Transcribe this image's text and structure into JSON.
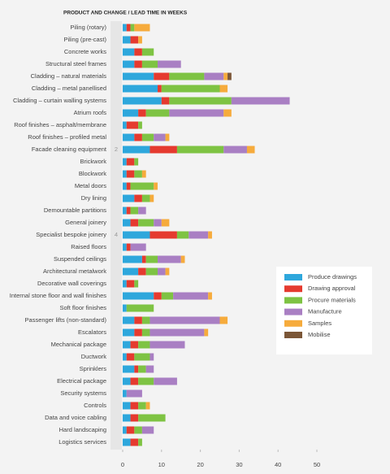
{
  "chart_data": {
    "type": "stacked-bar-horizontal",
    "title": "PRODUCT AND CHANGE  /  LEAD TIME IN WEEKS",
    "categories": [
      "Piling (rotary)",
      "Piling (pre-cast)",
      "Concrete works",
      "Structural steel frames",
      "Cladding – natural materials",
      "Cladding – metal panellised",
      "Cladding – curtain walling systems",
      "Atrium roofs",
      "Roof finishes – asphalt/membrane",
      "Roof finishes – profiled metal",
      "Facade cleaning equipment",
      "Brickwork",
      "Blockwork",
      "Metal doors",
      "Dry lining",
      "Demountable partitions",
      "General joinery",
      "Specialist bespoke joinery",
      "Raised floors",
      "Suspended ceilings",
      "Architectural metalwork",
      "Decorative wall coverings",
      "Internal stone floor and wall finishes",
      "Soft floor finishes",
      "Passenger lifts (non-standard)",
      "Escalators",
      "Mechanical package",
      "Ductwork",
      "Sprinklers",
      "Electrical package",
      "Security systems",
      "Controls",
      "Data and voice cabling",
      "Hard landscaping",
      "Logistics services"
    ],
    "series": [
      {
        "name": "Produce drawings",
        "color": "#2ea7dc",
        "values": [
          1,
          2,
          3,
          3,
          8,
          9,
          10,
          4,
          1,
          3,
          7,
          1,
          1,
          1,
          3,
          1,
          2,
          7,
          1,
          5,
          4,
          1,
          8,
          1,
          3,
          3,
          2,
          1,
          3,
          2,
          1,
          2,
          2,
          1,
          2
        ]
      },
      {
        "name": "Drawing approval",
        "color": "#e53a2f",
        "values": [
          1,
          2,
          2,
          2,
          4,
          1,
          2,
          2,
          3,
          2,
          7,
          2,
          2,
          1,
          2,
          1,
          2,
          7,
          1,
          1,
          2,
          2,
          2,
          0,
          2,
          2,
          2,
          2,
          1,
          2,
          0,
          2,
          2,
          2,
          2
        ]
      },
      {
        "name": "Procure materials",
        "color": "#7ec343",
        "values": [
          1,
          0,
          3,
          4,
          9,
          15,
          16,
          6,
          1,
          3,
          12,
          1,
          2,
          6,
          2,
          2,
          4,
          3,
          0,
          3,
          3,
          1,
          3,
          7,
          2,
          2,
          3,
          4,
          2,
          4,
          0,
          2,
          7,
          2,
          1
        ]
      },
      {
        "name": "Manufacture",
        "color": "#a97fc3",
        "values": [
          0,
          0,
          0,
          6,
          5,
          0,
          15,
          14,
          0,
          3,
          6,
          0,
          0,
          0,
          0,
          2,
          2,
          5,
          4,
          6,
          2,
          0,
          9,
          0,
          18,
          14,
          9,
          1,
          2,
          6,
          4,
          0,
          0,
          3,
          0
        ]
      },
      {
        "name": "Samples",
        "color": "#f6ab3c",
        "values": [
          4,
          1,
          0,
          0,
          1,
          2,
          0,
          2,
          0,
          1,
          2,
          0,
          1,
          1,
          1,
          0,
          2,
          1,
          0,
          1,
          1,
          0,
          1,
          0,
          2,
          1,
          0,
          0,
          0,
          0,
          0,
          1,
          0,
          0,
          0
        ]
      },
      {
        "name": "Mobilise",
        "color": "#7b5637",
        "values": [
          0,
          0,
          0,
          0,
          1,
          0,
          0,
          0,
          0,
          0,
          0,
          0,
          0,
          0,
          0,
          0,
          0,
          0,
          0,
          0,
          0,
          0,
          0,
          0,
          0,
          0,
          0,
          0,
          0,
          0,
          0,
          0,
          0,
          0,
          0
        ]
      }
    ],
    "annotations": [
      "2",
      "4"
    ],
    "xlim": [
      0,
      50
    ],
    "xticks": [
      0,
      10,
      20,
      30,
      40,
      50
    ]
  }
}
